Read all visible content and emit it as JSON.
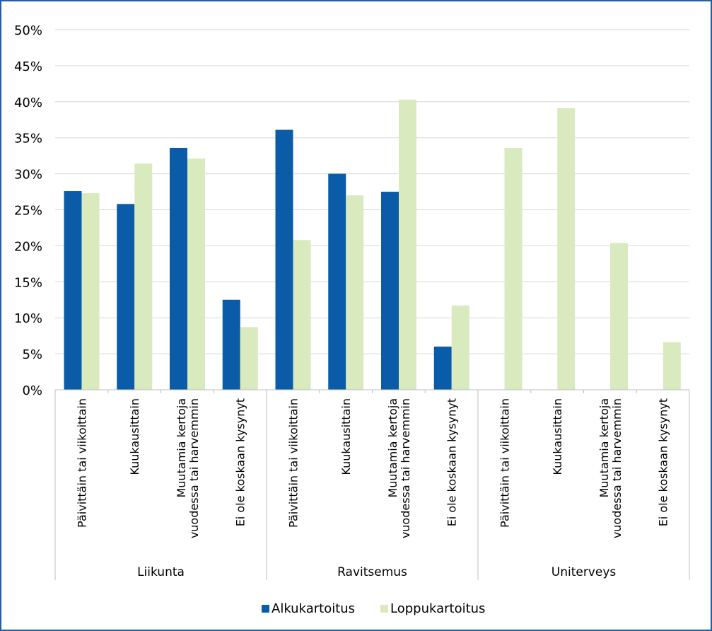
{
  "chart_data": {
    "type": "bar",
    "groups": [
      {
        "name": "Liikunta",
        "categories": [
          [
            "Päivittäin tai viikoittain"
          ],
          [
            "Kuukausittain"
          ],
          [
            "Muutamia kertoja",
            "vuodessa tai harvemmin"
          ],
          [
            "Ei ole koskaan kysynyt"
          ]
        ]
      },
      {
        "name": "Ravitsemus",
        "categories": [
          [
            "Päivittäin tai viikoittain"
          ],
          [
            "Kuukausittain"
          ],
          [
            "Muutamia kertoja",
            "vuodessa tai harvemmin"
          ],
          [
            "Ei ole koskaan kysynyt"
          ]
        ]
      },
      {
        "name": "Uniterveys",
        "categories": [
          [
            "Päivittäin tai viikoittain"
          ],
          [
            "Kuukausittain"
          ],
          [
            "Muutamia kertoja",
            "vuodessa tai harvemmin"
          ],
          [
            "Ei ole koskaan kysynyt"
          ]
        ]
      }
    ],
    "series": [
      {
        "name": "Alkukartoitus",
        "color": "#0a5ca8",
        "values": [
          27.6,
          25.8,
          33.6,
          12.5,
          36.1,
          30.0,
          27.5,
          6.0,
          null,
          null,
          null,
          null
        ]
      },
      {
        "name": "Loppukartoitus",
        "color": "#d9eabf",
        "values": [
          27.3,
          31.4,
          32.1,
          8.7,
          20.8,
          27.0,
          40.3,
          11.7,
          33.6,
          39.1,
          20.4,
          6.6
        ]
      }
    ],
    "yticks": [
      "0%",
      "5%",
      "10%",
      "15%",
      "20%",
      "25%",
      "30%",
      "35%",
      "40%",
      "45%",
      "50%"
    ],
    "ylim": [
      0,
      50
    ],
    "grid": true,
    "legend_position": "bottom"
  }
}
